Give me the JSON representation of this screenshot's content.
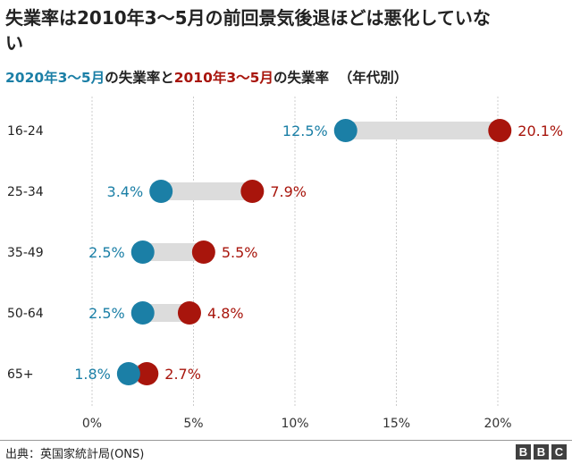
{
  "title": "失業率は2010年3〜5月の前回景気後退ほどは悪化していない",
  "subtitle": {
    "part1": "2020年3〜5月",
    "part2": "の失業率と",
    "part3": "2010年3〜5月",
    "part4": "の失業率",
    "part5": "（年代別）"
  },
  "colors": {
    "series_2020": "#1b7fa6",
    "series_2010": "#a8150c",
    "connector": "#dcdcdc",
    "gridline": "#cccccc"
  },
  "chart_data": {
    "type": "dumbbell",
    "title": "失業率は2010年3〜5月の前回景気後退ほどは悪化していない",
    "categories": [
      "16-24",
      "25-34",
      "35-49",
      "50-64",
      "65+"
    ],
    "series": [
      {
        "name": "2020年3〜5月",
        "values": [
          12.5,
          3.4,
          2.5,
          2.5,
          1.8
        ],
        "labels": [
          "12.5%",
          "3.4%",
          "2.5%",
          "2.5%",
          "1.8%"
        ]
      },
      {
        "name": "2010年3〜5月",
        "values": [
          20.1,
          7.9,
          5.5,
          4.8,
          2.7
        ],
        "labels": [
          "20.1%",
          "7.9%",
          "5.5%",
          "4.8%",
          "2.7%"
        ]
      }
    ],
    "xlim": [
      0,
      20
    ],
    "xticks": [
      0,
      5,
      10,
      15,
      20
    ],
    "xtick_labels": [
      "0%",
      "5%",
      "10%",
      "15%",
      "20%"
    ],
    "xlabel": "",
    "ylabel": "",
    "grid": true
  },
  "footer": {
    "source": "出典：英国家統計局(ONS)",
    "logo": [
      "B",
      "B",
      "C"
    ]
  }
}
